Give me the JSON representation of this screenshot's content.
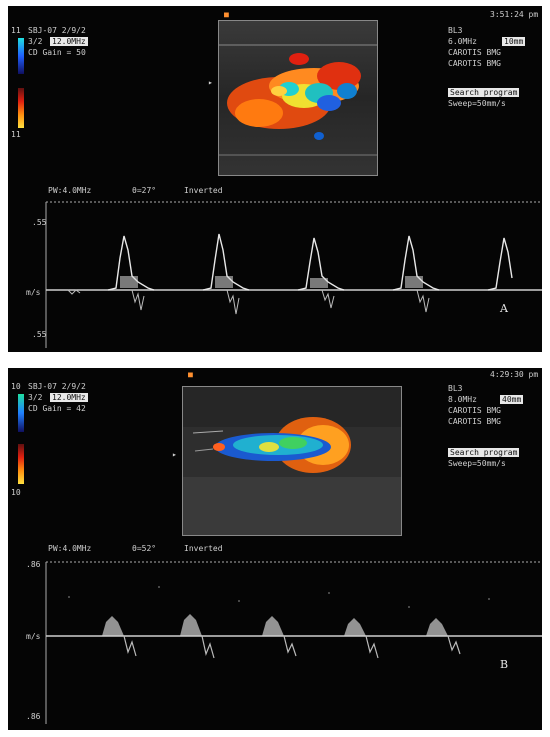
{
  "panels": [
    {
      "id": "A",
      "time": "3:51:24 pm",
      "scale_top": "11",
      "scale_bottom": "11",
      "header": {
        "line1": "SBJ-07 2/9/2",
        "line2_a": "3/2",
        "line2_b": "12.0MHz",
        "line3": "CD Gain = 50"
      },
      "right_info": [
        "BL3",
        "6.0MHz",
        "CAROTIS BMG",
        "CAROTIS BMG"
      ],
      "right_box": "10mm",
      "mode_box": "Search program",
      "sweep": "Sweep=50mm/s",
      "pw": "PW:4.0MHz",
      "angle": "θ=27°",
      "inverted": "Inverted",
      "y_top": ".55",
      "y_mid": "m/s",
      "y_bot": ".55",
      "label": "A"
    },
    {
      "id": "B",
      "time": "4:29:30 pm",
      "scale_top": "10",
      "scale_bottom": "10",
      "header": {
        "line1": "SBJ-07 2/9/2",
        "line2_a": "3/2",
        "line2_b": "12.0MHz",
        "line3": "CD Gain = 42"
      },
      "right_info": [
        "BL3",
        "8.0MHz",
        "CAROTIS BMG",
        "CAROTIS BMG"
      ],
      "right_box": "40mm",
      "mode_box": "Search program",
      "sweep": "Sweep=50mm/s",
      "pw": "PW:4.0MHz",
      "angle": "θ=52°",
      "inverted": "Inverted",
      "y_top": ".86",
      "y_mid": "m/s",
      "y_bot": ".86",
      "label": "B"
    }
  ],
  "colors": {
    "background": "#050505",
    "trace": "#e8e8e8",
    "baseline": "#d0d0d0"
  }
}
